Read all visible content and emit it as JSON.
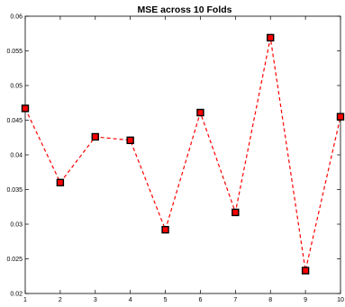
{
  "chart_data": {
    "type": "line",
    "title": "MSE across 10 Folds",
    "xlabel": "",
    "ylabel": "",
    "x": [
      1,
      2,
      3,
      4,
      5,
      6,
      7,
      8,
      9,
      10
    ],
    "series": [
      {
        "values": [
          0.0467,
          0.036,
          0.0426,
          0.0421,
          0.0292,
          0.0461,
          0.0317,
          0.0569,
          0.0233,
          0.0455
        ],
        "line_color": "#ff0000",
        "line_style": "dashed",
        "marker": "square",
        "marker_fill": "#ff0000",
        "marker_edge": "#000000"
      }
    ],
    "xlim": [
      1,
      10
    ],
    "ylim": [
      0.02,
      0.06
    ],
    "xticks": [
      1,
      2,
      3,
      4,
      5,
      6,
      7,
      8,
      9,
      10
    ],
    "xtick_labels": [
      "1",
      "2",
      "3",
      "4",
      "5",
      "6",
      "7",
      "8",
      "9",
      "10"
    ],
    "yticks": [
      0.02,
      0.025,
      0.03,
      0.035,
      0.04,
      0.045,
      0.05,
      0.055,
      0.06
    ],
    "ytick_labels": [
      "0.02",
      "0.025",
      "0.03",
      "0.035",
      "0.04",
      "0.045",
      "0.05",
      "0.055",
      "0.06"
    ],
    "grid": false,
    "legend": "none"
  }
}
